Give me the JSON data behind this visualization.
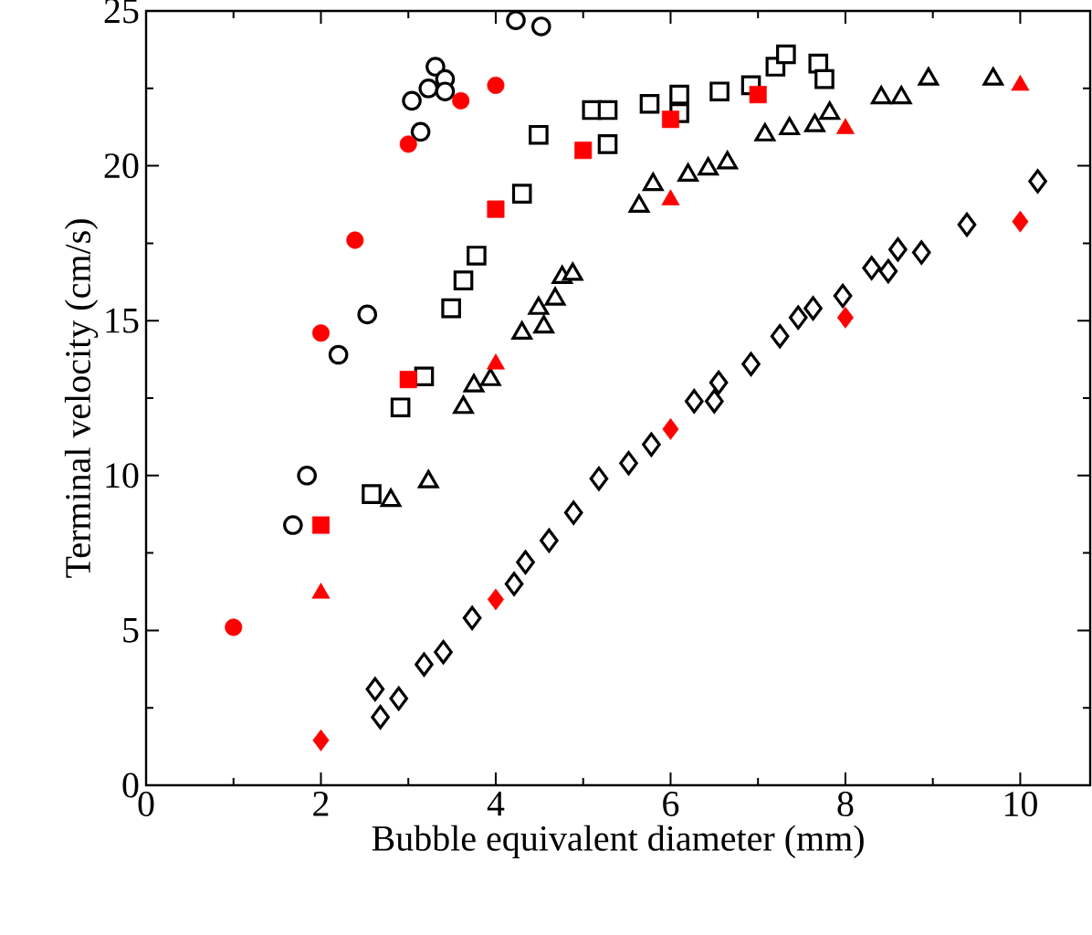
{
  "chart_data": {
    "type": "scatter",
    "xlabel": "Bubble equivalent diameter (mm)",
    "ylabel": "Terminal velocity (cm/s)",
    "xlim": [
      0,
      10.8
    ],
    "ylim": [
      0,
      25
    ],
    "xticks": [
      0,
      2,
      4,
      6,
      8,
      10
    ],
    "yticks": [
      0,
      5,
      10,
      15,
      20,
      25
    ],
    "grid": false,
    "series": [
      {
        "marker": "circle",
        "color": "#000000",
        "x": [
          1.68,
          1.84,
          2.2,
          2.53,
          3.04,
          3.14,
          3.23,
          3.31,
          3.42,
          3.42,
          4.23,
          4.52
        ],
        "values": [
          8.4,
          10.0,
          13.9,
          15.2,
          22.1,
          21.1,
          22.5,
          23.2,
          22.8,
          22.4,
          24.7,
          24.5
        ]
      },
      {
        "marker": "circle",
        "color": "#ff0000",
        "x": [
          1.0,
          2.0,
          2.39,
          3.0,
          3.6,
          4.0
        ],
        "values": [
          5.1,
          14.6,
          17.6,
          20.7,
          22.1,
          22.6
        ]
      },
      {
        "marker": "square",
        "color": "#000000",
        "x": [
          2.58,
          2.91,
          3.18,
          3.49,
          3.63,
          3.78,
          4.3,
          4.49,
          5.1,
          5.28,
          5.28,
          5.76,
          6.1,
          6.1,
          6.56,
          6.92,
          7.2,
          7.32,
          7.69,
          7.76
        ],
        "values": [
          9.4,
          12.2,
          13.2,
          15.4,
          16.3,
          17.1,
          19.1,
          21.0,
          21.8,
          21.8,
          20.7,
          22.0,
          22.3,
          21.7,
          22.4,
          22.6,
          23.2,
          23.6,
          23.3,
          22.8
        ]
      },
      {
        "marker": "square",
        "color": "#ff0000",
        "x": [
          2.0,
          3.0,
          4.0,
          5.0,
          6.0,
          7.0
        ],
        "values": [
          8.4,
          13.1,
          18.6,
          20.5,
          21.5,
          22.3
        ]
      },
      {
        "marker": "triangle",
        "color": "#000000",
        "x": [
          2.8,
          3.23,
          3.63,
          3.75,
          3.94,
          4.3,
          4.55,
          4.49,
          4.68,
          4.76,
          4.88,
          5.64,
          5.8,
          6.2,
          6.43,
          6.65,
          7.08,
          7.36,
          7.65,
          7.82,
          8.41,
          8.64,
          8.95,
          9.69
        ],
        "values": [
          9.2,
          9.8,
          12.2,
          12.9,
          13.1,
          14.6,
          14.8,
          15.4,
          15.7,
          16.4,
          16.5,
          18.7,
          19.4,
          19.7,
          19.9,
          20.1,
          21.0,
          21.2,
          21.3,
          21.7,
          22.2,
          22.2,
          22.8,
          22.8
        ]
      },
      {
        "marker": "triangle",
        "color": "#ff0000",
        "x": [
          2.0,
          4.0,
          6.0,
          8.0,
          10.0
        ],
        "values": [
          6.2,
          13.6,
          18.9,
          21.2,
          22.6
        ]
      },
      {
        "marker": "diamond",
        "color": "#000000",
        "x": [
          2.62,
          2.68,
          2.89,
          3.18,
          3.4,
          3.73,
          4.21,
          4.34,
          4.61,
          4.89,
          5.18,
          5.52,
          5.78,
          6.27,
          6.5,
          6.55,
          6.92,
          7.25,
          7.46,
          7.63,
          7.97,
          8.3,
          8.49,
          8.6,
          8.87,
          9.39,
          10.2
        ],
        "values": [
          3.1,
          2.2,
          2.8,
          3.9,
          4.3,
          5.4,
          6.5,
          7.2,
          7.9,
          8.8,
          9.9,
          10.4,
          11.0,
          12.4,
          12.4,
          13.0,
          13.6,
          14.5,
          15.1,
          15.4,
          15.8,
          16.7,
          16.6,
          17.3,
          17.2,
          18.1,
          19.5
        ]
      },
      {
        "marker": "diamond",
        "color": "#ff0000",
        "x": [
          2.0,
          4.0,
          6.0,
          8.0,
          10.0
        ],
        "values": [
          1.45,
          6.0,
          11.5,
          15.1,
          18.2
        ]
      }
    ]
  }
}
